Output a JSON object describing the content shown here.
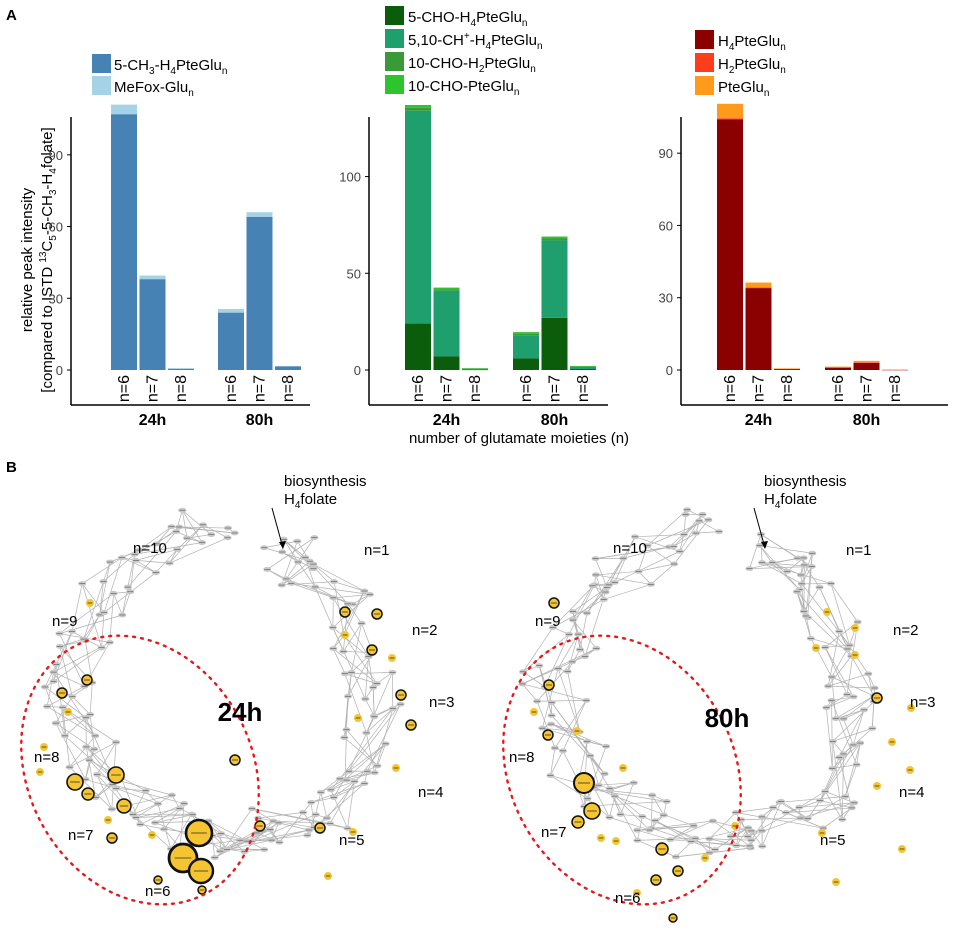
{
  "panel_labels": {
    "a": "A",
    "b": "B"
  },
  "y_axis_label": {
    "line1": "relative peak intensity",
    "line2_prefix": "[compared to ISTD ",
    "line2_sup": "13",
    "line2_c": "C",
    "line2_sub1": "5",
    "line2_mid": "-5-CH",
    "line2_sub2": "3",
    "line2_mid2": "-H",
    "line2_sub3": "4",
    "line2_suffix": "folate]"
  },
  "x_axis_label": "number of glutamate moieties (n)",
  "chart_data": [
    {
      "type": "bar",
      "stacked": true,
      "groups": [
        "24h",
        "80h"
      ],
      "categories": [
        "n=6",
        "n=7",
        "n=8"
      ],
      "ylim": [
        0,
        110
      ],
      "yticks": [
        0,
        30,
        60,
        90
      ],
      "series": [
        {
          "name": "5-CH3-H4PteGlun",
          "color": "#4682b4",
          "values": [
            [
              107,
              38,
              0.5
            ],
            [
              24,
              64,
              1.5
            ]
          ]
        },
        {
          "name": "MeFox-Glun",
          "color": "#a6d2e6",
          "values": [
            [
              4,
              1.5,
              0.3
            ],
            [
              1.5,
              2,
              0.2
            ]
          ]
        }
      ],
      "legend": [
        {
          "base": "5-CH",
          "s1": "3",
          "mid": "-H",
          "s2": "4",
          "rest": "PteGlu",
          "s3": "n"
        },
        {
          "base": "MeFox-Glu",
          "s1": "",
          "mid": "",
          "s2": "",
          "rest": "",
          "s3": "n"
        }
      ]
    },
    {
      "type": "bar",
      "stacked": true,
      "groups": [
        "24h",
        "80h"
      ],
      "categories": [
        "n=6",
        "n=7",
        "n=8"
      ],
      "ylim": [
        0,
        137
      ],
      "yticks": [
        0,
        50,
        100
      ],
      "series": [
        {
          "name": "5-CHO-H4PteGlun",
          "color": "#0b5c0b",
          "values": [
            [
              24,
              7,
              0.2
            ],
            [
              6,
              27,
              0.5
            ]
          ]
        },
        {
          "name": "5,10-CH+-H4PteGlun",
          "color": "#1f9e6e",
          "values": [
            [
              110,
              34,
              0.5
            ],
            [
              12,
              40,
              1.2
            ]
          ]
        },
        {
          "name": "10-CHO-H2PteGlun",
          "color": "#3a9a3a",
          "values": [
            [
              1.5,
              0.8,
              0.1
            ],
            [
              0.8,
              1,
              0.2
            ]
          ]
        },
        {
          "name": "10-CHO-PteGlun",
          "color": "#2ec42e",
          "values": [
            [
              1.5,
              0.8,
              0.1
            ],
            [
              0.8,
              1,
              0.2
            ]
          ]
        }
      ],
      "legend": [
        {
          "base": "5-CHO-H",
          "s1": "4",
          "sup": "",
          "mid": "PteGlu",
          "s2": "n"
        },
        {
          "base": "5,10-CH",
          "s1": "",
          "sup": "+",
          "mid": "-H",
          "s2": "4",
          "rest": "PteGlu",
          "s3": "n"
        },
        {
          "base": "10-CHO-H",
          "s1": "2",
          "sup": "",
          "mid": "PteGlu",
          "s2": "n"
        },
        {
          "base": "10-CHO-PteGlu",
          "s1": "",
          "sup": "",
          "mid": "",
          "s2": "n"
        }
      ]
    },
    {
      "type": "bar",
      "stacked": true,
      "groups": [
        "24h",
        "80h"
      ],
      "categories": [
        "n=6",
        "n=7",
        "n=8"
      ],
      "ylim": [
        0,
        110
      ],
      "yticks": [
        0,
        30,
        60,
        90
      ],
      "series": [
        {
          "name": "H4PteGlun",
          "color": "#8b0000",
          "values": [
            [
              104,
              34,
              0.4
            ],
            [
              1,
              3,
              0.1
            ]
          ]
        },
        {
          "name": "H2PteGlun",
          "color": "#ff3d1a",
          "values": [
            [
              0.5,
              0.3,
              0.1
            ],
            [
              0.1,
              0.2,
              0.05
            ]
          ]
        },
        {
          "name": "PteGlun",
          "color": "#ff9a1a",
          "values": [
            [
              6,
              2,
              0.2
            ],
            [
              0.3,
              0.6,
              0.05
            ]
          ]
        }
      ],
      "legend": [
        {
          "base": "H",
          "s1": "4",
          "mid": "PteGlu",
          "s2": "n"
        },
        {
          "base": "H",
          "s1": "2",
          "mid": "PteGlu",
          "s2": "n"
        },
        {
          "base": "PteGlu",
          "s1": "",
          "mid": "",
          "s2": "n"
        }
      ]
    }
  ],
  "networks": [
    {
      "title": "24h",
      "annotation": {
        "line1": "biosynthesis",
        "line2_base": "H",
        "line2_sub": "4",
        "line2_rest": "folate"
      },
      "ring_labels": [
        "n=1",
        "n=2",
        "n=3",
        "n=4",
        "n=5",
        "n=6",
        "n=7",
        "n=8",
        "n=9",
        "n=10"
      ]
    },
    {
      "title": "80h",
      "annotation": {
        "line1": "biosynthesis",
        "line2_base": "H",
        "line2_sub": "4",
        "line2_rest": "folate"
      },
      "ring_labels": [
        "n=1",
        "n=2",
        "n=3",
        "n=4",
        "n=5",
        "n=6",
        "n=7",
        "n=8",
        "n=9",
        "n=10"
      ]
    }
  ],
  "colors": {
    "node_grey": "#c8c8c8",
    "node_yellow": "#f5c531",
    "node_dark": "#111111",
    "edge": "#b0b0b0",
    "highlight": "#e31a1c"
  }
}
